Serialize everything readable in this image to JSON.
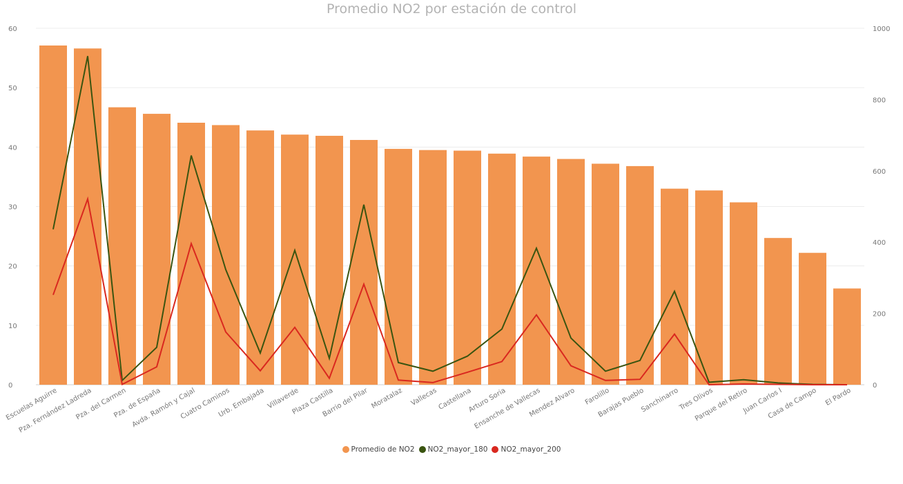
{
  "chart_data": {
    "type": "bar",
    "title": "Promedio NO2 por estación de control",
    "categories": [
      "Escuelas Aguirre",
      "Pza. Fernández Ladreda",
      "Pza. del Carmen",
      "Pza. de España",
      "Avda. Ramón y Cajal",
      "Cuatro Caminos",
      "Urb. Embajada",
      "Villaverde",
      "Plaza Castilla",
      "Barrio del Pilar",
      "Moratalaz",
      "Vallecas",
      "Castellana",
      "Arturo Soria",
      "Ensanche de Vallecas",
      "Mendez Alvaro",
      "Farolillo",
      "Barajas Pueblo",
      "Sanchinarro",
      "Tres Olivos",
      "Parque del Retiro",
      "Juan Carlos I",
      "Casa de Campo",
      "El Pardo"
    ],
    "series": [
      {
        "name": "Promedio de NO2",
        "type": "bar",
        "axis": "left",
        "color": "#f2954f",
        "values": [
          57.1,
          56.6,
          46.7,
          45.6,
          44.1,
          43.7,
          42.8,
          42.1,
          41.9,
          41.2,
          39.7,
          39.5,
          39.4,
          38.9,
          38.4,
          38.0,
          37.2,
          36.8,
          33.0,
          32.7,
          30.7,
          24.7,
          22.2,
          16.2
        ]
      },
      {
        "name": "NO2_mayor_180",
        "type": "line",
        "axis": "right",
        "color": "#3a5410",
        "values": [
          436,
          922,
          12,
          105,
          643,
          323,
          89,
          377,
          74,
          505,
          62,
          38,
          80,
          156,
          383,
          131,
          38,
          68,
          262,
          7,
          14,
          5,
          1,
          0
        ]
      },
      {
        "name": "NO2_mayor_200",
        "type": "line",
        "axis": "right",
        "color": "#d9281f",
        "values": [
          252,
          521,
          1,
          50,
          396,
          148,
          39,
          161,
          18,
          282,
          13,
          6,
          35,
          65,
          196,
          53,
          12,
          15,
          142,
          0,
          2,
          1,
          0,
          0
        ]
      }
    ],
    "y_left": {
      "min": 0,
      "max": 60,
      "ticks": [
        0,
        10,
        20,
        30,
        40,
        50,
        60
      ]
    },
    "y_right": {
      "min": 0,
      "max": 1000,
      "ticks": [
        0,
        200,
        400,
        600,
        800,
        1000
      ]
    },
    "grid": true,
    "legend_position": "bottom-center"
  }
}
